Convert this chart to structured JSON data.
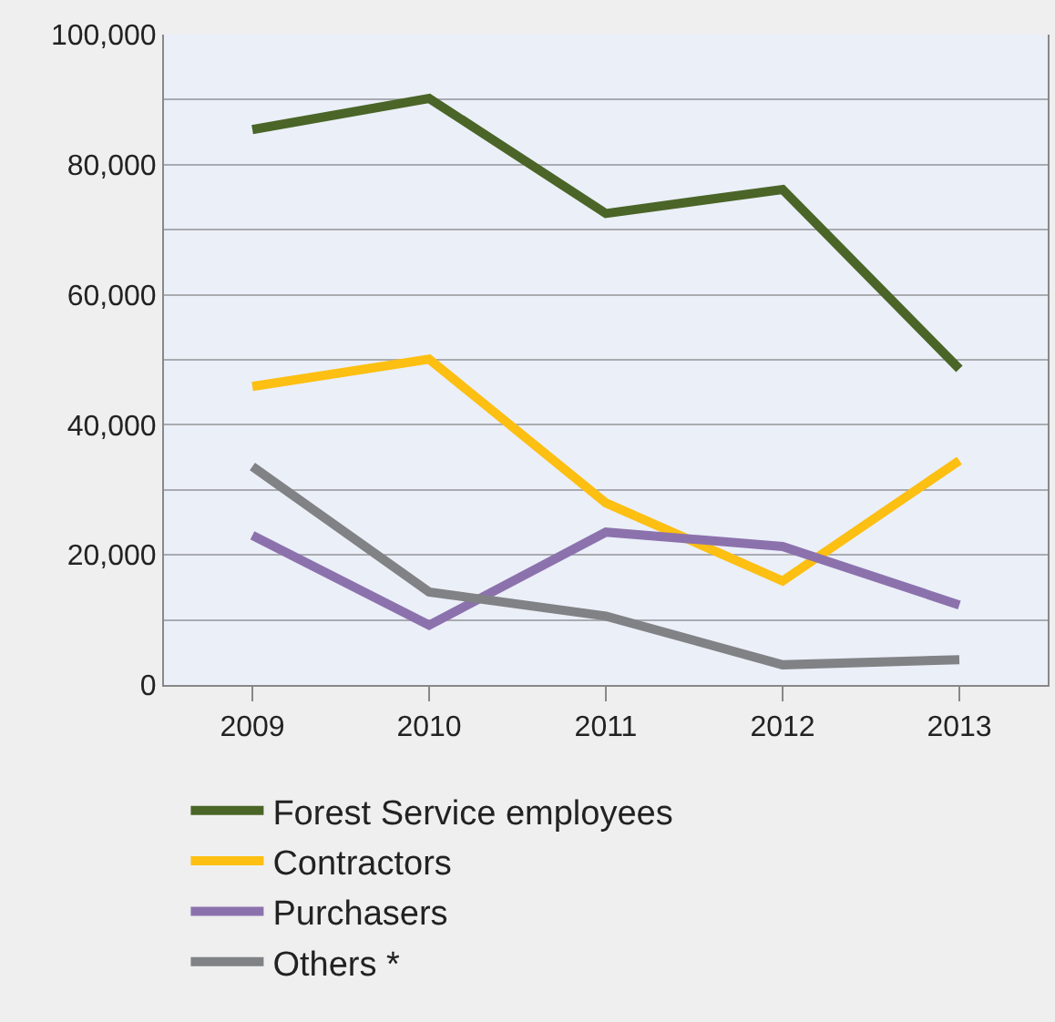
{
  "chart_data": {
    "type": "line",
    "categories": [
      "2009",
      "2010",
      "2011",
      "2012",
      "2013"
    ],
    "series": [
      {
        "name": "Forest Service employees",
        "color": "#4a6527",
        "values": [
          85400,
          90200,
          72500,
          76200,
          48600
        ]
      },
      {
        "name": "Contractors",
        "color": "#fcbf12",
        "values": [
          45900,
          50100,
          28000,
          16000,
          34500
        ]
      },
      {
        "name": "Purchasers",
        "color": "#8c72ad",
        "values": [
          23000,
          9200,
          23500,
          21300,
          12300
        ]
      },
      {
        "name": "Others *",
        "color": "#818285",
        "values": [
          33600,
          14300,
          10600,
          3100,
          3900
        ]
      }
    ],
    "ylim": [
      0,
      100000
    ],
    "yticks": [
      0,
      {
        "value": 10000,
        "label": null
      },
      {
        "value": 20000,
        "label": "20,000"
      },
      {
        "value": 30000,
        "label": null
      },
      {
        "value": 40000,
        "label": "40,000"
      },
      {
        "value": 50000,
        "label": null
      },
      {
        "value": 60000,
        "label": "60,000"
      },
      {
        "value": 70000,
        "label": null
      },
      {
        "value": 80000,
        "label": "80,000"
      },
      {
        "value": 90000,
        "label": null
      },
      {
        "value": 100000,
        "label": "100,000"
      }
    ],
    "grid": "y",
    "legend": "bottom",
    "marker": "none",
    "line_style": "solid"
  }
}
